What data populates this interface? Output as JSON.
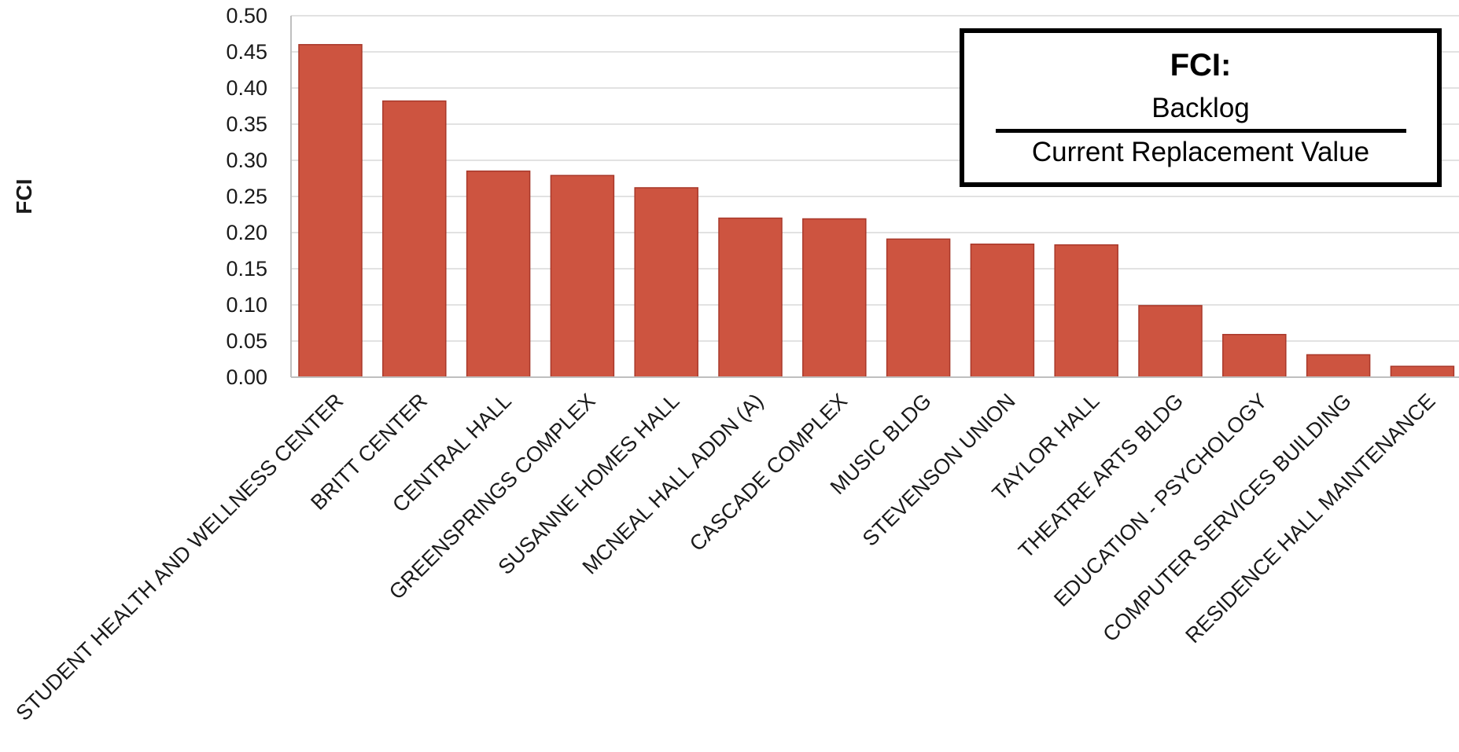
{
  "chart_data": {
    "type": "bar",
    "title": "",
    "xlabel": "",
    "ylabel": "FCI",
    "ylim": [
      0,
      0.5
    ],
    "yticks": [
      "0.00",
      "0.05",
      "0.10",
      "0.15",
      "0.20",
      "0.25",
      "0.30",
      "0.35",
      "0.40",
      "0.45",
      "0.50"
    ],
    "grid": true,
    "bar_color": "#cd5440",
    "bar_edge_color": "#a8382a",
    "categories": [
      "STUDENT HEALTH AND WELLNESS CENTER",
      "BRITT CENTER",
      "CENTRAL HALL",
      "GREENSPRINGS COMPLEX",
      "SUSANNE HOMES HALL",
      "MCNEAL HALL ADDN (A)",
      "CASCADE COMPLEX",
      "MUSIC BLDG",
      "STEVENSON UNION",
      "TAYLOR HALL",
      "THEATRE ARTS BLDG",
      "EDUCATION - PSYCHOLOGY",
      "COMPUTER SERVICES BUILDING",
      "RESIDENCE HALL MAINTENANCE"
    ],
    "values": [
      0.46,
      0.382,
      0.285,
      0.279,
      0.262,
      0.22,
      0.219,
      0.191,
      0.184,
      0.183,
      0.099,
      0.059,
      0.031,
      0.015
    ],
    "annotation": {
      "title": "FCI:",
      "numerator": "Backlog",
      "denominator": "Current Replacement Value"
    }
  }
}
